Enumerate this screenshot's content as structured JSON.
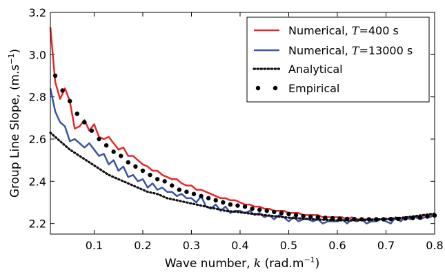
{
  "chart_data": {
    "type": "line",
    "xlabel_prefix": "Wave number, ",
    "xlabel_var": "k",
    "xlabel_unit": " (rad.m",
    "xlabel_sup": "−1",
    "xlabel_close": ")",
    "ylabel_main": "Group Line Slope, (m.s",
    "ylabel_sup": "−1",
    "ylabel_close": ")",
    "xlim": [
      0.01,
      0.8
    ],
    "ylim": [
      2.15,
      3.2
    ],
    "xticks": [
      0.1,
      0.2,
      0.3,
      0.4,
      0.5,
      0.6,
      0.7,
      0.8
    ],
    "xtick_labels": [
      "0.1",
      "0.2",
      "0.3",
      "0.4",
      "0.5",
      "0.6",
      "0.7",
      "0.8"
    ],
    "yticks": [
      2.2,
      2.4,
      2.6,
      2.8,
      3.0,
      3.2
    ],
    "ytick_labels": [
      "2.2",
      "2.4",
      "2.6",
      "2.8",
      "3.0",
      "3.2"
    ],
    "legend_position": "top-right",
    "grid": false,
    "series": [
      {
        "name": "Numerical, T=400 s",
        "name_prefix": "Numerical, ",
        "name_var": "T",
        "name_eq": "=400",
        "name_unit": " s",
        "style": "solid",
        "color": "#e8262a",
        "x": [
          0.01,
          0.02,
          0.03,
          0.04,
          0.05,
          0.06,
          0.07,
          0.08,
          0.09,
          0.1,
          0.11,
          0.12,
          0.13,
          0.14,
          0.15,
          0.16,
          0.17,
          0.18,
          0.19,
          0.2,
          0.21,
          0.22,
          0.23,
          0.24,
          0.25,
          0.26,
          0.27,
          0.28,
          0.29,
          0.3,
          0.31,
          0.32,
          0.33,
          0.34,
          0.35,
          0.36,
          0.37,
          0.38,
          0.39,
          0.4,
          0.41,
          0.42,
          0.43,
          0.44,
          0.45,
          0.46,
          0.47,
          0.48,
          0.49,
          0.5,
          0.51,
          0.52,
          0.53,
          0.54,
          0.55,
          0.56,
          0.57,
          0.58,
          0.59,
          0.6,
          0.61,
          0.62,
          0.63,
          0.64,
          0.65,
          0.66,
          0.67,
          0.68,
          0.69,
          0.7,
          0.71,
          0.72,
          0.73,
          0.74,
          0.75,
          0.76,
          0.77,
          0.78,
          0.79,
          0.8
        ],
        "values": [
          3.13,
          2.87,
          2.79,
          2.84,
          2.78,
          2.65,
          2.66,
          2.69,
          2.64,
          2.67,
          2.61,
          2.6,
          2.61,
          2.58,
          2.55,
          2.56,
          2.52,
          2.52,
          2.5,
          2.48,
          2.47,
          2.45,
          2.45,
          2.43,
          2.42,
          2.41,
          2.41,
          2.39,
          2.38,
          2.38,
          2.36,
          2.36,
          2.35,
          2.34,
          2.33,
          2.32,
          2.32,
          2.31,
          2.31,
          2.3,
          2.29,
          2.29,
          2.28,
          2.28,
          2.27,
          2.27,
          2.26,
          2.26,
          2.26,
          2.25,
          2.25,
          2.25,
          2.24,
          2.24,
          2.24,
          2.24,
          2.23,
          2.23,
          2.23,
          2.23,
          2.23,
          2.22,
          2.23,
          2.22,
          2.22,
          2.22,
          2.22,
          2.22,
          2.22,
          2.22,
          2.22,
          2.22,
          2.22,
          2.22,
          2.23,
          2.23,
          2.23,
          2.24,
          2.24,
          2.24
        ]
      },
      {
        "name": "Numerical, T=13000 s",
        "name_prefix": "Numerical, ",
        "name_var": "T",
        "name_eq": "=13000",
        "name_unit": " s",
        "style": "solid",
        "color": "#3a53a4",
        "x": [
          0.01,
          0.02,
          0.03,
          0.04,
          0.05,
          0.06,
          0.07,
          0.08,
          0.09,
          0.1,
          0.11,
          0.12,
          0.13,
          0.14,
          0.15,
          0.16,
          0.17,
          0.18,
          0.19,
          0.2,
          0.21,
          0.22,
          0.23,
          0.24,
          0.25,
          0.26,
          0.27,
          0.28,
          0.29,
          0.3,
          0.31,
          0.32,
          0.33,
          0.34,
          0.35,
          0.36,
          0.37,
          0.38,
          0.39,
          0.4,
          0.41,
          0.42,
          0.43,
          0.44,
          0.45,
          0.46,
          0.47,
          0.48,
          0.49,
          0.5,
          0.51,
          0.52,
          0.53,
          0.54,
          0.55,
          0.56,
          0.57,
          0.58,
          0.59,
          0.6,
          0.61,
          0.62,
          0.63,
          0.64,
          0.65,
          0.66,
          0.67,
          0.68,
          0.69,
          0.7,
          0.71,
          0.72,
          0.73,
          0.74,
          0.75,
          0.76,
          0.77,
          0.78,
          0.79,
          0.8
        ],
        "values": [
          2.84,
          2.73,
          2.68,
          2.66,
          2.59,
          2.6,
          2.58,
          2.56,
          2.58,
          2.55,
          2.52,
          2.53,
          2.48,
          2.5,
          2.45,
          2.47,
          2.42,
          2.43,
          2.4,
          2.41,
          2.37,
          2.39,
          2.36,
          2.37,
          2.35,
          2.35,
          2.33,
          2.34,
          2.32,
          2.32,
          2.3,
          2.33,
          2.28,
          2.27,
          2.29,
          2.26,
          2.28,
          2.25,
          2.26,
          2.26,
          2.25,
          2.26,
          2.24,
          2.25,
          2.23,
          2.24,
          2.22,
          2.24,
          2.23,
          2.21,
          2.23,
          2.21,
          2.22,
          2.22,
          2.21,
          2.22,
          2.2,
          2.21,
          2.21,
          2.21,
          2.22,
          2.2,
          2.22,
          2.21,
          2.22,
          2.2,
          2.21,
          2.21,
          2.22,
          2.21,
          2.2,
          2.23,
          2.21,
          2.23,
          2.22,
          2.23,
          2.22,
          2.23,
          2.23,
          2.24
        ]
      },
      {
        "name": "Analytical",
        "style": "dotted",
        "color": "#111111",
        "x": [
          0.01,
          0.03,
          0.05,
          0.07,
          0.09,
          0.11,
          0.13,
          0.15,
          0.17,
          0.19,
          0.21,
          0.23,
          0.25,
          0.27,
          0.29,
          0.31,
          0.33,
          0.35,
          0.37,
          0.39,
          0.41,
          0.43,
          0.45,
          0.47,
          0.49,
          0.51,
          0.53,
          0.55,
          0.57,
          0.59,
          0.61,
          0.63,
          0.65,
          0.67,
          0.69,
          0.71,
          0.73,
          0.75,
          0.77,
          0.79,
          0.8
        ],
        "values": [
          2.63,
          2.59,
          2.55,
          2.52,
          2.49,
          2.46,
          2.43,
          2.41,
          2.39,
          2.37,
          2.35,
          2.34,
          2.32,
          2.31,
          2.3,
          2.29,
          2.28,
          2.27,
          2.26,
          2.256,
          2.25,
          2.245,
          2.24,
          2.235,
          2.23,
          2.226,
          2.223,
          2.22,
          2.218,
          2.216,
          2.215,
          2.215,
          2.216,
          2.218,
          2.22,
          2.223,
          2.227,
          2.232,
          2.238,
          2.244,
          2.247
        ]
      },
      {
        "name": "Empirical",
        "style": "markers",
        "color": "#000000",
        "x": [
          0.02,
          0.035,
          0.05,
          0.065,
          0.08,
          0.095,
          0.11,
          0.125,
          0.14,
          0.155,
          0.17,
          0.185,
          0.2,
          0.215,
          0.23,
          0.245,
          0.26,
          0.275,
          0.29,
          0.305,
          0.32,
          0.335,
          0.35,
          0.365,
          0.38,
          0.395,
          0.41,
          0.425,
          0.44,
          0.455,
          0.47,
          0.485,
          0.5,
          0.515,
          0.53,
          0.545,
          0.56,
          0.575,
          0.59,
          0.605,
          0.62,
          0.635,
          0.65,
          0.665,
          0.68,
          0.695,
          0.71,
          0.725,
          0.74,
          0.755,
          0.77,
          0.785,
          0.8
        ],
        "values": [
          2.9,
          2.83,
          2.78,
          2.72,
          2.68,
          2.64,
          2.6,
          2.57,
          2.54,
          2.52,
          2.49,
          2.47,
          2.45,
          2.43,
          2.41,
          2.4,
          2.38,
          2.36,
          2.35,
          2.34,
          2.33,
          2.32,
          2.31,
          2.3,
          2.29,
          2.285,
          2.28,
          2.27,
          2.265,
          2.26,
          2.255,
          2.25,
          2.245,
          2.24,
          2.235,
          2.232,
          2.23,
          2.227,
          2.225,
          2.223,
          2.222,
          2.221,
          2.22,
          2.22,
          2.22,
          2.22,
          2.221,
          2.222,
          2.224,
          2.226,
          2.229,
          2.233,
          2.238
        ]
      }
    ]
  }
}
